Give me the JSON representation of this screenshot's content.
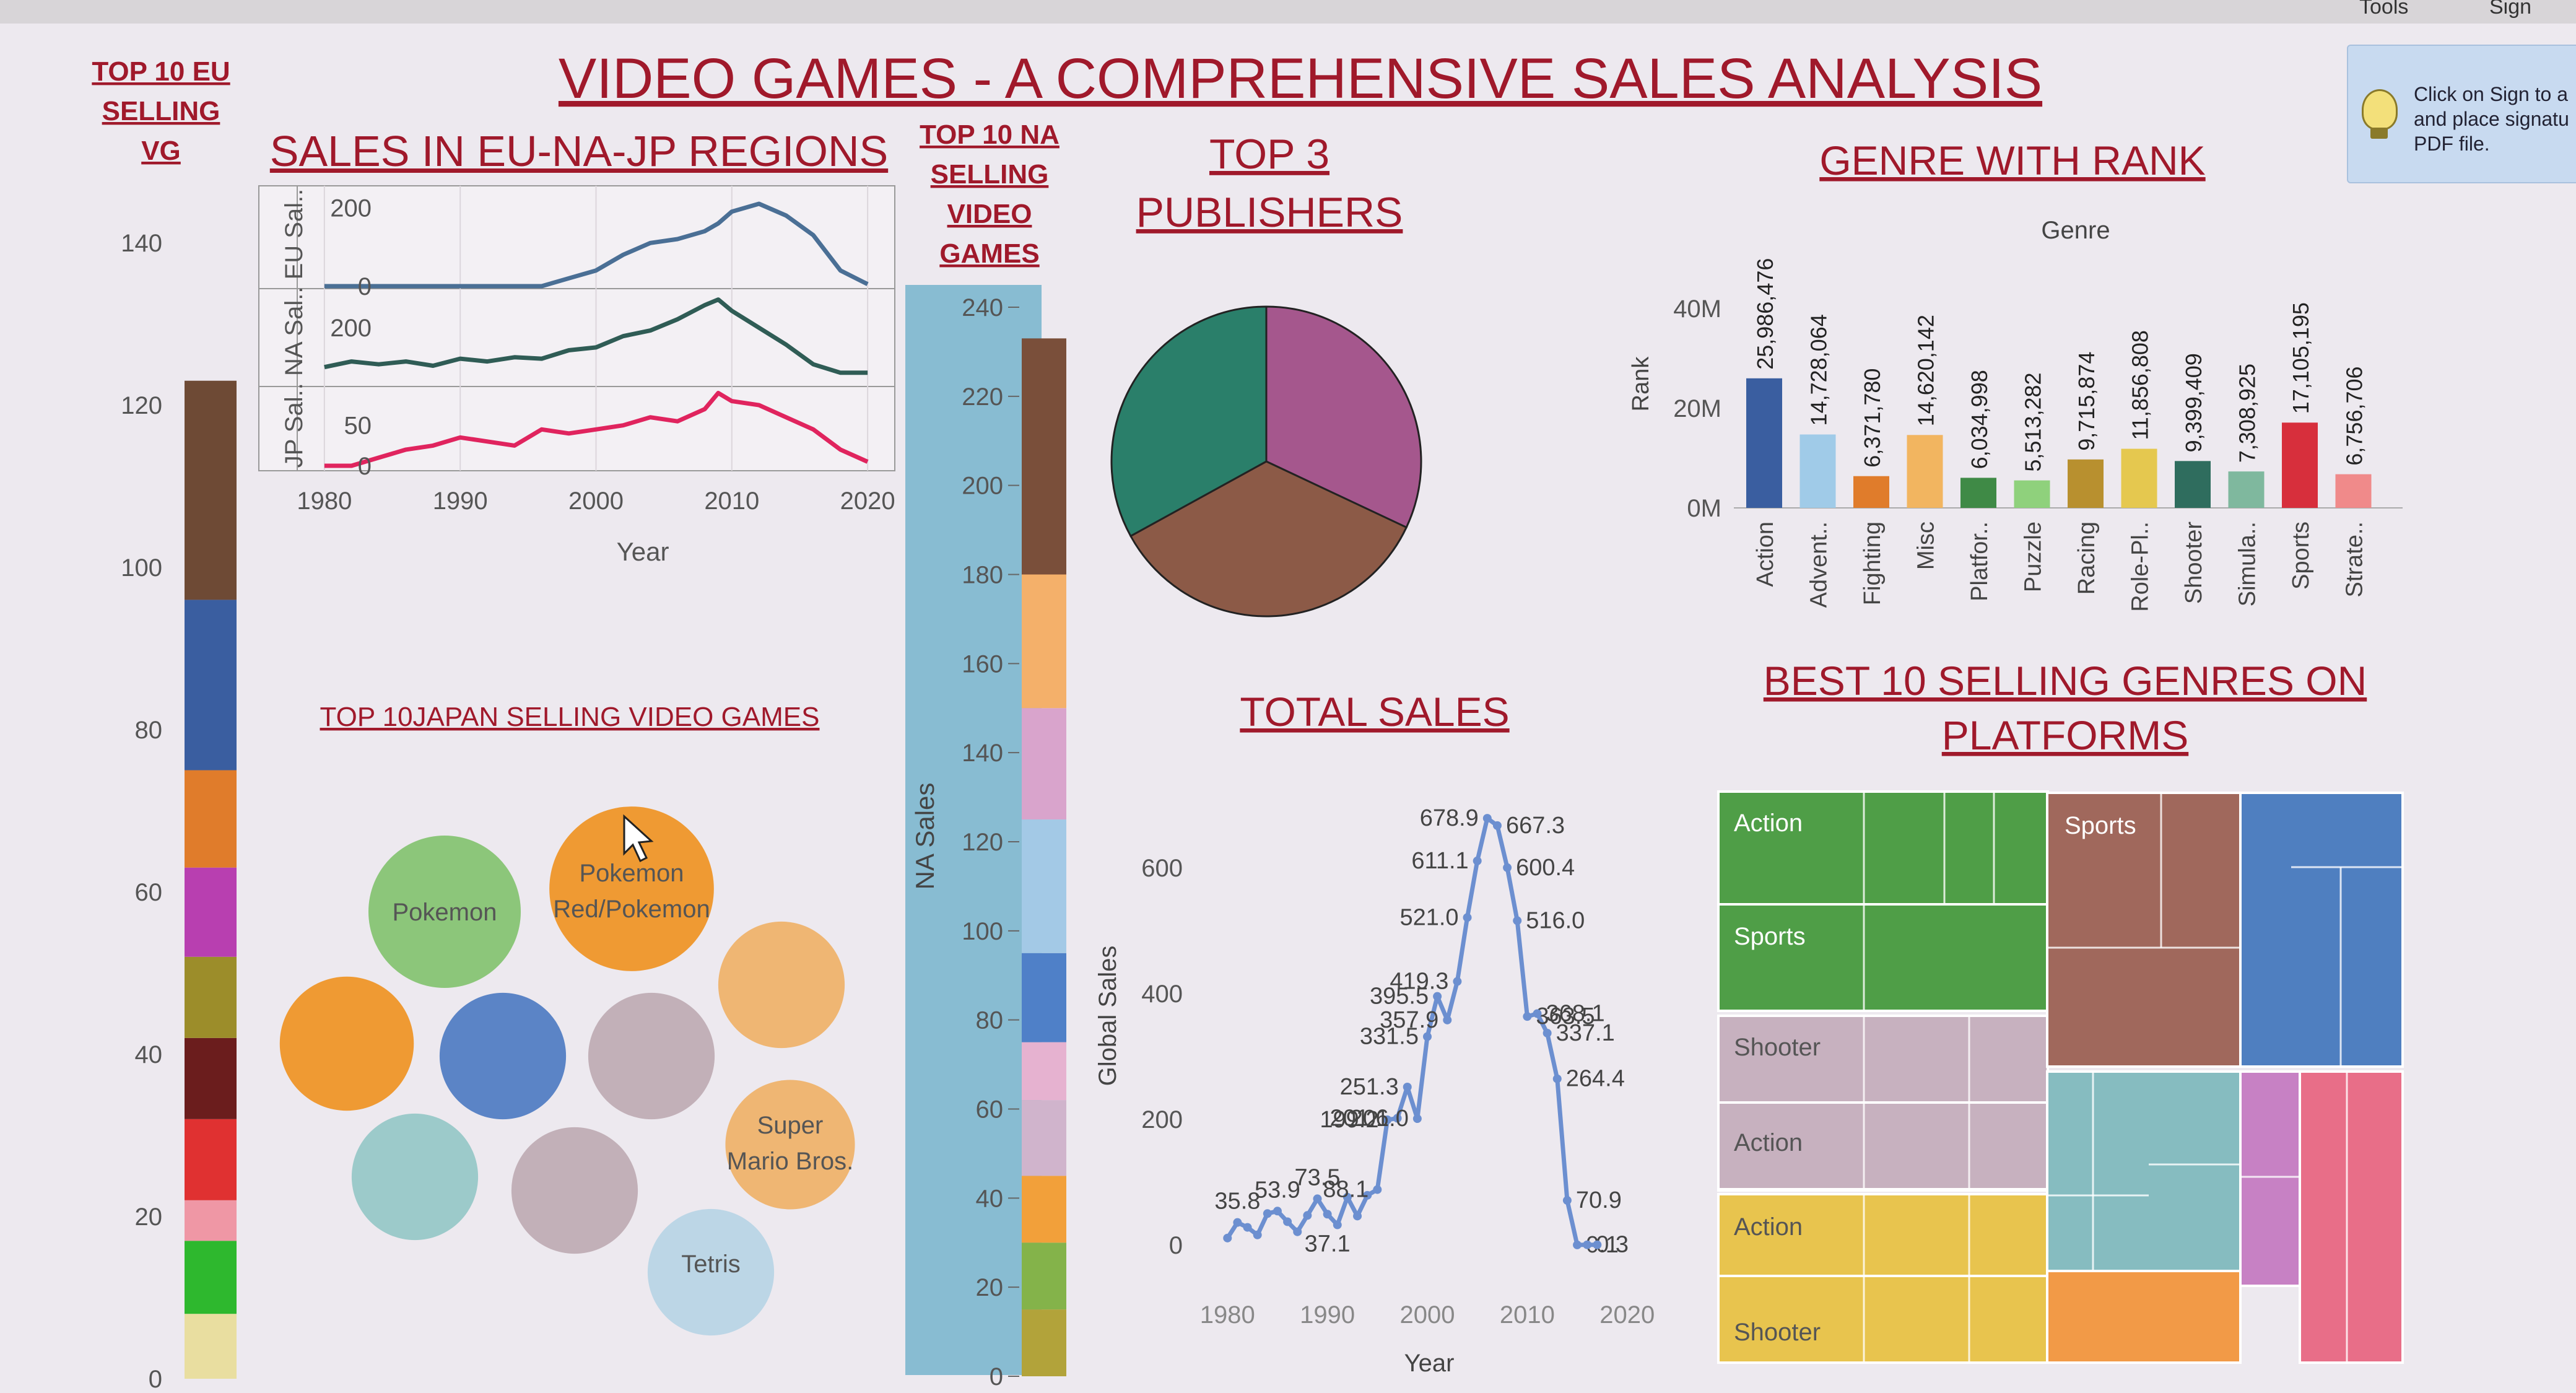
{
  "dashboard": {
    "title": "VIDEO GAMES - A COMPREHENSIVE SALES ANALYSIS",
    "eu_title": [
      "TOP 10 EU",
      "SELLING",
      "VG"
    ],
    "regions_title": "SALES IN EU-NA-JP REGIONS",
    "na_title": [
      "TOP 10 NA",
      "SELLING",
      "VIDEO",
      "GAMES"
    ],
    "publishers_title": [
      "TOP 3",
      "PUBLISHERS"
    ],
    "genre_title": "GENRE WITH RANK",
    "japan_title": "TOP 10JAPAN SELLING VIDEO GAMES",
    "total_title": "TOTAL SALES",
    "platform_title": [
      "BEST 10 SELLING GENRES  ON",
      "PLATFORMS"
    ],
    "window": {
      "tools": "Tools",
      "sign": "Sign"
    },
    "tooltip": {
      "lines": [
        "Click on Sign to a",
        "and place signatu",
        "PDF file."
      ]
    }
  },
  "colors": {
    "title_red": "#a0192b",
    "blue": "#4e79a7",
    "lightblue": "#a0cbe8",
    "orange": "#f28e2b",
    "green": "#59a14f",
    "teal": "#86bcb6",
    "pink": "#d37295",
    "brown": "#8c6d5b",
    "dark_teal": "#2f5c55",
    "crimson": "#e0245e",
    "purple": "#b07aa1",
    "gray": "#bab0ac"
  },
  "chart_data": [
    {
      "id": "eu_top10",
      "type": "bar",
      "description_visible": "stacked bar, y axis",
      "ylim": [
        0,
        145
      ],
      "yticks": [
        "0",
        "20",
        "40",
        "60",
        "80",
        "100",
        "120",
        "140"
      ],
      "segments": [
        {
          "value": 8,
          "color": "#e9dea0"
        },
        {
          "value": 9,
          "color": "#2eb82e"
        },
        {
          "value": 5,
          "color": "#ef97a5"
        },
        {
          "value": 10,
          "color": "#e03131"
        },
        {
          "value": 10,
          "color": "#6b1d1d"
        },
        {
          "value": 10,
          "color": "#9c8d2a"
        },
        {
          "value": 11,
          "color": "#b83fb0"
        },
        {
          "value": 12,
          "color": "#e07c2b"
        },
        {
          "value": 21,
          "color": "#3a5ea0"
        },
        {
          "value": 27,
          "color": "#6e4a35"
        }
      ]
    },
    {
      "id": "regions",
      "type": "line",
      "x": [
        1980,
        1982,
        1984,
        1986,
        1988,
        1990,
        1992,
        1994,
        1996,
        1998,
        2000,
        2002,
        2004,
        2006,
        2008,
        2009,
        2010,
        2012,
        2014,
        2016,
        2018,
        2020
      ],
      "xticks": [
        "1980",
        "1990",
        "2000",
        "2010",
        "2020"
      ],
      "xlabel": "Year",
      "ylabels": [
        "JP Sal..",
        "NA Sal..",
        "EU Sal.."
      ],
      "series": [
        {
          "name": "EU Sal..",
          "ticks": [
            "0",
            "200"
          ],
          "ylim": [
            0,
            240
          ],
          "color": "#4a6f95",
          "values": [
            0,
            0,
            0,
            0,
            0,
            0,
            0,
            0,
            0,
            20,
            40,
            80,
            110,
            120,
            140,
            160,
            190,
            210,
            180,
            130,
            40,
            5
          ]
        },
        {
          "name": "NA Sal..",
          "ticks": [
            "200"
          ],
          "ylim": [
            0,
            330
          ],
          "color": "#2f5c55",
          "values": [
            60,
            80,
            70,
            80,
            65,
            90,
            80,
            95,
            90,
            120,
            130,
            170,
            190,
            230,
            280,
            300,
            260,
            200,
            140,
            70,
            40,
            40
          ]
        },
        {
          "name": "JP Sal..",
          "ticks": [
            "0",
            "50"
          ],
          "ylim": [
            0,
            95
          ],
          "color": "#e0245e",
          "values": [
            0,
            0,
            10,
            20,
            25,
            35,
            30,
            25,
            45,
            40,
            45,
            50,
            60,
            55,
            70,
            90,
            80,
            75,
            60,
            45,
            20,
            5
          ]
        }
      ]
    },
    {
      "id": "na_top10",
      "type": "bar",
      "ylabel": "NA Sales",
      "ylim": [
        0,
        245
      ],
      "yticks": [
        "0",
        "20",
        "40",
        "60",
        "80",
        "100",
        "120",
        "140",
        "160",
        "180",
        "200",
        "220",
        "240"
      ],
      "segments": [
        {
          "value": 15,
          "color": "#b2a33a"
        },
        {
          "value": 15,
          "color": "#84b34a"
        },
        {
          "value": 15,
          "color": "#f2a03a"
        },
        {
          "value": 17,
          "color": "#d0b4cc"
        },
        {
          "value": 13,
          "color": "#e6b2d0"
        },
        {
          "value": 20,
          "color": "#4f80c8"
        },
        {
          "value": 30,
          "color": "#a3c9e6"
        },
        {
          "value": 25,
          "color": "#d9a4cc"
        },
        {
          "value": 30,
          "color": "#f4b06a"
        },
        {
          "value": 53,
          "color": "#7a4f3a"
        }
      ]
    },
    {
      "id": "top3_publishers",
      "type": "pie",
      "slices": [
        {
          "value": 32,
          "color": "#a5578d"
        },
        {
          "value": 35,
          "color": "#8c5a47"
        },
        {
          "value": 33,
          "color": "#2a7f6a"
        }
      ]
    },
    {
      "id": "genre_rank",
      "type": "bar",
      "title": "Genre",
      "ylabel": "Rank",
      "ylim": [
        0,
        42000000
      ],
      "yticks": [
        "0M",
        "20M",
        "40M"
      ],
      "categories": [
        "Action",
        "Advent..",
        "Fighting",
        "Misc",
        "Platfor..",
        "Puzzle",
        "Racing",
        "Role-Pl..",
        "Shooter",
        "Simula..",
        "Sports",
        "Strate.."
      ],
      "labels": [
        "25,986,476",
        "14,728,064",
        "6,371,780",
        "14,620,142",
        "6,034,998",
        "5,513,282",
        "9,715,874",
        "11,856,808",
        "9,399,409",
        "7,308,925",
        "17,105,195",
        "6,756,706"
      ],
      "values": [
        25986476,
        14728064,
        6371780,
        14620142,
        6034998,
        5513282,
        9715874,
        11856808,
        9399409,
        7308925,
        17105195,
        6756706
      ],
      "colors": [
        "#3a5ea0",
        "#a0cbe8",
        "#e07c2b",
        "#f2b560",
        "#3f8a46",
        "#8fd17c",
        "#b8902f",
        "#e5c84f",
        "#2f6d5e",
        "#7fb89e",
        "#d72f3c",
        "#f08a8a"
      ]
    },
    {
      "id": "japan_bubbles",
      "type": "scatter",
      "bubbles": [
        {
          "label": "Pokemon",
          "color": "#8cc67a",
          "size": 1.0
        },
        {
          "label": "Pokemon Red/Pokemon",
          "color": "#ef9a33",
          "size": 1.08
        },
        {
          "label": "",
          "color": "#efb673",
          "size": 0.83
        },
        {
          "label": "",
          "color": "#ef9a33",
          "size": 0.88
        },
        {
          "label": "",
          "color": "#5b84c6",
          "size": 0.83
        },
        {
          "label": "",
          "color": "#c2b0b8",
          "size": 0.83
        },
        {
          "label": "Super Mario Bros.",
          "color": "#efb673",
          "size": 0.85
        },
        {
          "label": "",
          "color": "#9ccaca",
          "size": 0.83
        },
        {
          "label": "",
          "color": "#c2b0b8",
          "size": 0.83
        },
        {
          "label": "Tetris",
          "color": "#bcd6e6",
          "size": 0.83
        }
      ]
    },
    {
      "id": "total_sales",
      "type": "line",
      "xlabel": "Year",
      "ylabel": "Global Sales",
      "xticks": [
        "1980",
        "1990",
        "2000",
        "2010",
        "2020"
      ],
      "yticks": [
        "0",
        "200",
        "400",
        "600"
      ],
      "ylim": [
        0,
        720
      ],
      "points": [
        {
          "x": 1980,
          "y": 11,
          "label": ""
        },
        {
          "x": 1981,
          "y": 35.8,
          "label": "35.8"
        },
        {
          "x": 1982,
          "y": 28,
          "label": ""
        },
        {
          "x": 1983,
          "y": 16,
          "label": ""
        },
        {
          "x": 1984,
          "y": 50,
          "label": ""
        },
        {
          "x": 1985,
          "y": 53.9,
          "label": "53.9"
        },
        {
          "x": 1986,
          "y": 37,
          "label": ""
        },
        {
          "x": 1987,
          "y": 21,
          "label": ""
        },
        {
          "x": 1988,
          "y": 47,
          "label": ""
        },
        {
          "x": 1989,
          "y": 73.5,
          "label": "73.5"
        },
        {
          "x": 1990,
          "y": 49,
          "label": ""
        },
        {
          "x": 1991,
          "y": 32,
          "label": ""
        },
        {
          "x": 1992,
          "y": 76,
          "label": ""
        },
        {
          "x": 1993,
          "y": 46,
          "label": ""
        },
        {
          "x": 1994,
          "y": 79,
          "label": ""
        },
        {
          "x": 1995,
          "y": 88.1,
          "label": "88.1"
        },
        {
          "x": 1996,
          "y": 199.2,
          "label": "199.2"
        },
        {
          "x": 1997,
          "y": 201.6,
          "label": "201.6"
        },
        {
          "x": 1998,
          "y": 251.3,
          "label": "251.3"
        },
        {
          "x": 1999,
          "y": 201.0,
          "label": "201.0"
        },
        {
          "x": 2000,
          "y": 331.5,
          "label": "331.5"
        },
        {
          "x": 2001,
          "y": 395.5,
          "label": "395.5"
        },
        {
          "x": 2002,
          "y": 357.9,
          "label": "357.9"
        },
        {
          "x": 2003,
          "y": 419.3,
          "label": "419.3"
        },
        {
          "x": 2004,
          "y": 521.0,
          "label": "521.0"
        },
        {
          "x": 2005,
          "y": 611.1,
          "label": "611.1"
        },
        {
          "x": 2006,
          "y": 678.9,
          "label": "678.9"
        },
        {
          "x": 2007,
          "y": 667.3,
          "label": "667.3"
        },
        {
          "x": 2008,
          "y": 600.4,
          "label": "600.4"
        },
        {
          "x": 2009,
          "y": 516.0,
          "label": "516.0"
        },
        {
          "x": 2010,
          "y": 363.5,
          "label": "363.5"
        },
        {
          "x": 2011,
          "y": 368.1,
          "label": "368.1"
        },
        {
          "x": 2012,
          "y": 337.1,
          "label": "337.1"
        },
        {
          "x": 2013,
          "y": 264.4,
          "label": "264.4"
        },
        {
          "x": 2014,
          "y": 70.9,
          "label": "70.9"
        },
        {
          "x": 2015,
          "y": 0.1,
          "label": "0.1"
        },
        {
          "x": 2016,
          "y": 0.3,
          "label": "0.3"
        },
        {
          "x": 2017,
          "y": 0.3,
          "label": ""
        }
      ],
      "extra_labels": [
        "37.1"
      ]
    },
    {
      "id": "genre_platform_treemap",
      "type": "table",
      "tiles": [
        {
          "label": "Action",
          "color": "#4f9e47"
        },
        {
          "label": "Sports",
          "color": "#4f9e47"
        },
        {
          "label": "Shooter",
          "color": "#c7b1bf"
        },
        {
          "label": "Action",
          "color": "#c7b1bf"
        },
        {
          "label": "Action",
          "color": "#e8c44e"
        },
        {
          "label": "Shooter",
          "color": "#e8c44e"
        },
        {
          "label": "Sports",
          "color": "#a0685c"
        },
        {
          "label": "",
          "color": "#4f7fc0"
        },
        {
          "label": "",
          "color": "#86bcc0"
        },
        {
          "label": "",
          "color": "#c781c4"
        },
        {
          "label": "",
          "color": "#f29a47"
        },
        {
          "label": "",
          "color": "#e86e88"
        }
      ]
    }
  ]
}
